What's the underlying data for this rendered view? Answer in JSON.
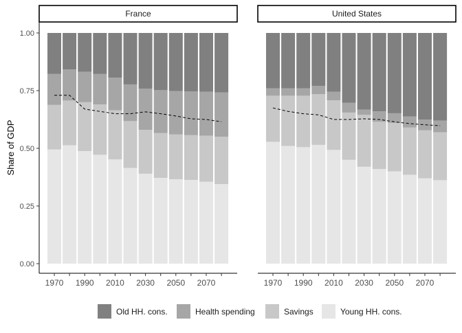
{
  "chart_data": {
    "type": "bar",
    "stacked": true,
    "ylabel": "Share of GDP",
    "ylim": [
      0,
      1
    ],
    "yticks": [
      "0.00",
      "0.25",
      "0.50",
      "0.75",
      "1.00"
    ],
    "x": [
      1970,
      1980,
      1990,
      2000,
      2010,
      2020,
      2030,
      2040,
      2050,
      2060,
      2070,
      2080
    ],
    "xtick_labels": [
      "1970",
      "1990",
      "2010",
      "2030",
      "2050",
      "2070"
    ],
    "grid": false,
    "legend_position": "bottom",
    "series": [
      {
        "name": "Old HH. cons.",
        "color": "#808080"
      },
      {
        "name": "Health spending",
        "color": "#a6a6a6"
      },
      {
        "name": "Savings",
        "color": "#c8c8c8"
      },
      {
        "name": "Young HH. cons.",
        "color": "#e6e6e6"
      }
    ],
    "panels": [
      {
        "title": "France",
        "young": [
          0.495,
          0.513,
          0.488,
          0.472,
          0.452,
          0.415,
          0.39,
          0.372,
          0.366,
          0.363,
          0.355,
          0.345
        ],
        "savings_top": [
          0.688,
          0.707,
          0.7,
          0.69,
          0.665,
          0.618,
          0.58,
          0.566,
          0.56,
          0.557,
          0.555,
          0.55
        ],
        "health_top": [
          0.822,
          0.842,
          0.832,
          0.822,
          0.806,
          0.777,
          0.759,
          0.752,
          0.748,
          0.747,
          0.745,
          0.742
        ],
        "line": [
          0.73,
          0.73,
          0.67,
          0.66,
          0.65,
          0.65,
          0.658,
          0.65,
          0.64,
          0.628,
          0.625,
          0.615
        ]
      },
      {
        "title": "United States",
        "young": [
          0.528,
          0.51,
          0.505,
          0.515,
          0.493,
          0.45,
          0.42,
          0.41,
          0.4,
          0.385,
          0.37,
          0.362
        ],
        "savings_top": [
          0.728,
          0.728,
          0.728,
          0.735,
          0.708,
          0.655,
          0.645,
          0.615,
          0.61,
          0.59,
          0.578,
          0.57
        ],
        "health_top": [
          0.76,
          0.76,
          0.76,
          0.77,
          0.745,
          0.697,
          0.668,
          0.66,
          0.652,
          0.638,
          0.625,
          0.62
        ],
        "line": [
          0.675,
          0.66,
          0.65,
          0.645,
          0.625,
          0.625,
          0.628,
          0.625,
          0.615,
          0.607,
          0.602,
          0.598
        ]
      }
    ]
  }
}
